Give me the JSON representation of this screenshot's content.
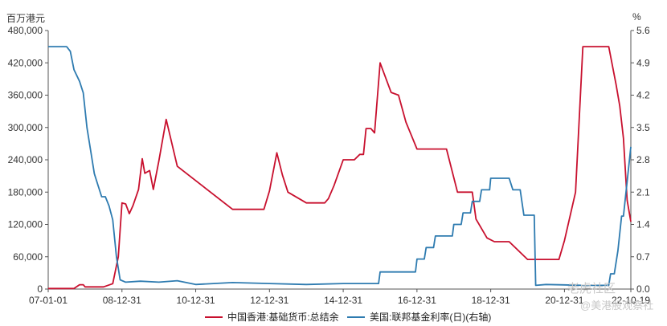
{
  "chart_data": {
    "type": "line",
    "left_unit": "百万港元",
    "right_unit": "%",
    "x_ticks": [
      "07-01-01",
      "08-12-31",
      "10-12-31",
      "12-12-31",
      "14-12-31",
      "16-12-31",
      "18-12-31",
      "20-12-31",
      "22-10-19"
    ],
    "y_left_ticks": [
      "0",
      "60,000",
      "120,000",
      "180,000",
      "240,000",
      "300,000",
      "360,000",
      "420,000",
      "480,000"
    ],
    "y_right_ticks": [
      "0.0",
      "0.7",
      "1.4",
      "2.1",
      "2.8",
      "3.5",
      "4.2",
      "4.9",
      "5.6"
    ],
    "ylim_left": [
      0,
      480000
    ],
    "ylim_right": [
      0,
      5.6
    ],
    "xlim": [
      2007.0,
      2022.8
    ],
    "grid": false,
    "legend_position": "bottom",
    "series": [
      {
        "name": "中国香港:基础货币:总结余",
        "axis": "left",
        "color": "#c8102e",
        "x": [
          2007.0,
          2007.7,
          2007.85,
          2007.95,
          2008.0,
          2008.5,
          2008.75,
          2008.9,
          2009.0,
          2009.1,
          2009.2,
          2009.3,
          2009.45,
          2009.55,
          2009.62,
          2009.75,
          2009.85,
          2010.0,
          2010.2,
          2010.5,
          2012.0,
          2012.6,
          2012.75,
          2012.85,
          2013.0,
          2013.2,
          2013.35,
          2013.5,
          2014.0,
          2014.5,
          2014.6,
          2014.75,
          2015.0,
          2015.2,
          2015.3,
          2015.45,
          2015.55,
          2015.62,
          2015.75,
          2015.85,
          2016.0,
          2016.3,
          2016.5,
          2016.7,
          2017.0,
          2017.3,
          2017.5,
          2017.8,
          2018.1,
          2018.5,
          2018.6,
          2018.9,
          2019.1,
          2019.3,
          2019.5,
          2020.0,
          2020.3,
          2020.5,
          2020.75,
          2020.85,
          2021.0,
          2021.3,
          2021.5,
          2021.75,
          2021.85,
          2022.0,
          2022.2,
          2022.4,
          2022.5,
          2022.6,
          2022.7,
          2022.8
        ],
        "values": [
          1000,
          1000,
          8000,
          8000,
          4000,
          4000,
          10000,
          60000,
          160000,
          158000,
          140000,
          155000,
          185000,
          242000,
          215000,
          220000,
          185000,
          238000,
          315000,
          228000,
          148000,
          148000,
          148000,
          148000,
          182000,
          253000,
          212000,
          180000,
          160000,
          160000,
          168000,
          192000,
          240000,
          240000,
          240000,
          250000,
          250000,
          298000,
          298000,
          290000,
          420000,
          365000,
          360000,
          310000,
          260000,
          260000,
          260000,
          260000,
          180000,
          180000,
          130000,
          95000,
          88000,
          88000,
          88000,
          55000,
          55000,
          55000,
          55000,
          55000,
          90000,
          180000,
          450000,
          450000,
          450000,
          450000,
          450000,
          380000,
          340000,
          280000,
          165000,
          125000
        ]
      },
      {
        "name": "美国:联邦基金利率(日)(右轴)",
        "axis": "right",
        "color": "#2e7bb0",
        "x": [
          2007.0,
          2007.5,
          2007.6,
          2007.7,
          2007.85,
          2007.95,
          2008.05,
          2008.15,
          2008.25,
          2008.35,
          2008.45,
          2008.55,
          2008.65,
          2008.75,
          2008.85,
          2008.95,
          2009.1,
          2009.5,
          2010.0,
          2010.5,
          2011.0,
          2012.0,
          2013.0,
          2014.0,
          2015.0,
          2015.96,
          2016.0,
          2016.96,
          2017.0,
          2017.2,
          2017.25,
          2017.45,
          2017.5,
          2017.96,
          2018.0,
          2018.2,
          2018.25,
          2018.45,
          2018.5,
          2018.7,
          2018.75,
          2018.97,
          2019.0,
          2019.5,
          2019.6,
          2019.8,
          2019.9,
          2020.18,
          2020.22,
          2020.5,
          2021.0,
          2021.5,
          2022.0,
          2022.2,
          2022.25,
          2022.35,
          2022.45,
          2022.55,
          2022.6,
          2022.7,
          2022.8
        ],
        "values": [
          5.25,
          5.25,
          5.15,
          4.75,
          4.5,
          4.25,
          3.5,
          3.0,
          2.5,
          2.25,
          2.0,
          2.0,
          1.8,
          1.5,
          0.7,
          0.2,
          0.15,
          0.17,
          0.15,
          0.18,
          0.1,
          0.14,
          0.12,
          0.1,
          0.12,
          0.12,
          0.37,
          0.37,
          0.65,
          0.65,
          0.9,
          0.9,
          1.15,
          1.15,
          1.4,
          1.4,
          1.65,
          1.65,
          1.9,
          1.9,
          2.15,
          2.15,
          2.4,
          2.4,
          2.15,
          2.15,
          1.6,
          1.6,
          0.08,
          0.1,
          0.09,
          0.08,
          0.08,
          0.08,
          0.33,
          0.33,
          0.83,
          1.58,
          1.58,
          2.33,
          3.08
        ]
      }
    ]
  },
  "watermark": {
    "line1": "老虎社区",
    "line2": "@美港股观察社"
  }
}
